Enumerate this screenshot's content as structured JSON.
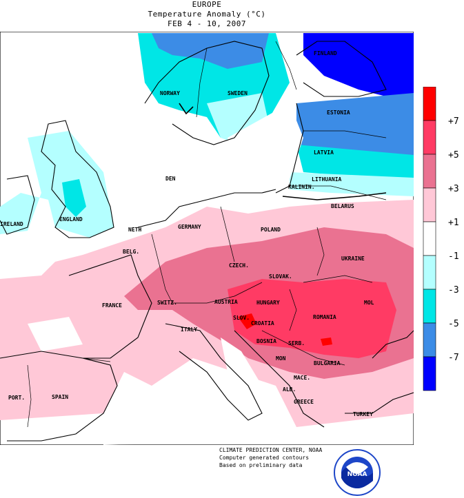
{
  "title": {
    "region": "EUROPE",
    "variable": "Temperature Anomaly (°C)",
    "period": "FEB 4 - 10, 2007"
  },
  "credits": [
    "CLIMATE PREDICTION CENTER, NOAA",
    "Computer generated contours",
    "Based on preliminary data"
  ],
  "legend": {
    "bins": [
      {
        "label": "+7",
        "color": "#ff0000"
      },
      {
        "label": "+5",
        "color": "#ff3b64"
      },
      {
        "label": "+3",
        "color": "#ea7291"
      },
      {
        "label": "+1",
        "color": "#ffc8d7"
      },
      {
        "label": "-1",
        "color": "#ffffff"
      },
      {
        "label": "-3",
        "color": "#b4ffff"
      },
      {
        "label": "-5",
        "color": "#00e6e6"
      },
      {
        "label": "-7",
        "color": "#3c8ce6"
      },
      {
        "label": "",
        "color": "#0000ff"
      }
    ]
  },
  "countries": {
    "finland": "FINLAND",
    "norway": "NORWAY",
    "sweden": "SWEDEN",
    "estonia": "ESTONIA",
    "latvia": "LATVIA",
    "lithuania": "LITHUANIA",
    "kaliningrad": "KALININ.",
    "belarus": "BELARUS",
    "denmark": "DEN",
    "ireland": "IRELAND",
    "england": "ENGLAND",
    "netherlands": "NETH",
    "germany": "GERMANY",
    "poland": "POLAND",
    "belgium": "BELG.",
    "czech": "CZECH.",
    "slovakia": "SLOVAK.",
    "ukraine": "UKRAINE",
    "france": "FRANCE",
    "switzerland": "SWITZ.",
    "austria": "AUSTRIA",
    "hungary": "HUNGARY",
    "moldova": "MOL",
    "slovenia": "SLOV.",
    "croatia": "CROATIA",
    "romania": "ROMANIA",
    "italy": "ITALY",
    "bosnia": "BOSNIA",
    "serbia": "SERB.",
    "montenegro": "MON",
    "bulgaria": "BULGARIA",
    "macedonia": "MACE.",
    "albania": "ALB.",
    "greece": "GREECE",
    "portugal": "PORT.",
    "spain": "SPAIN",
    "turkey": "TURKEY"
  },
  "logo_text": "NOAA",
  "colors": {
    "plus7": "#ff0000",
    "plus5": "#ff3b64",
    "plus3": "#ea7291",
    "plus1": "#ffc8d7",
    "neutral": "#ffffff",
    "minus1": "#b4ffff",
    "minus3": "#00e6e6",
    "minus5": "#3c8ce6",
    "minus7": "#0000ff"
  }
}
